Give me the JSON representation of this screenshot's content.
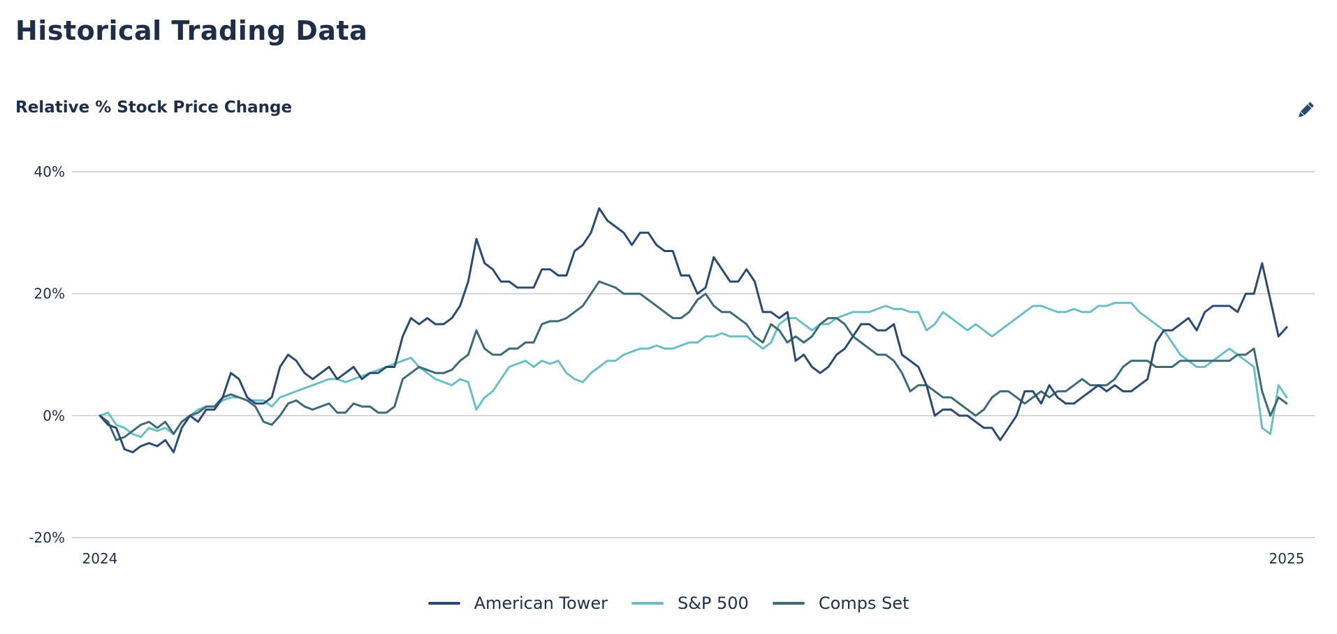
{
  "page": {
    "title": "Historical Trading Data",
    "subtitle": "Relative % Stock Price Change",
    "edit_icon": "pencil-icon"
  },
  "colors": {
    "grid": "#c9c9c9",
    "axis_text": "#1e2f49"
  },
  "chart_data": {
    "type": "line",
    "title": "Relative % Stock Price Change",
    "xlabel": "",
    "ylabel": "",
    "x_range": [
      2024,
      2025
    ],
    "ylim": [
      -20,
      40
    ],
    "yticks": [
      40,
      20,
      0,
      -20
    ],
    "ytick_labels": [
      "40%",
      "20%",
      "0%",
      "-20%"
    ],
    "xtick_labels": [
      "2024",
      "2025"
    ],
    "grid": true,
    "legend_position": "bottom-center",
    "series": [
      {
        "name": "American Tower",
        "color": "#2b4a73",
        "values": [
          0,
          -1.5,
          -2,
          -5.5,
          -6,
          -5,
          -4.5,
          -5,
          -4,
          -6,
          -2,
          0,
          -1,
          1,
          1,
          3,
          7,
          6,
          3,
          2,
          2,
          3,
          8,
          10,
          9,
          7,
          6,
          7,
          8,
          6,
          7,
          8,
          6,
          7,
          7,
          8,
          8,
          13,
          16,
          15,
          16,
          15,
          15,
          16,
          18,
          22,
          29,
          25,
          24,
          22,
          22,
          21,
          21,
          21,
          24,
          24,
          23,
          23,
          27,
          28,
          30,
          34,
          32,
          31,
          30,
          28,
          30,
          30,
          28,
          27,
          27,
          23,
          23,
          20,
          21,
          26,
          24,
          22,
          22,
          24,
          22,
          17,
          17,
          16,
          17,
          9,
          10,
          8,
          7,
          8,
          10,
          11,
          13,
          15,
          15,
          14,
          14,
          15,
          10,
          9,
          8,
          5,
          0,
          1,
          1,
          0,
          0,
          -1,
          -2,
          -2,
          -4,
          -2,
          0,
          4,
          4,
          2,
          5,
          3,
          2,
          2,
          3,
          4,
          5,
          4,
          5,
          4,
          4,
          5,
          6,
          12,
          14,
          14,
          15,
          16,
          14,
          17,
          18,
          18,
          18,
          17,
          20,
          20,
          25,
          19,
          13,
          14.5
        ]
      },
      {
        "name": "S&P 500",
        "color": "#6bbfc4",
        "values": [
          0,
          0.5,
          -1.5,
          -2,
          -3,
          -3.5,
          -2,
          -2.5,
          -2,
          -3,
          -1,
          0,
          1,
          1.5,
          1.5,
          2.5,
          3,
          3,
          2.5,
          2.5,
          2.5,
          1.5,
          3,
          3.5,
          4,
          4.5,
          5,
          5.5,
          6,
          6,
          5.5,
          6,
          6.5,
          7,
          7.5,
          8,
          8.5,
          9,
          9.5,
          8,
          7,
          6,
          5.5,
          5,
          6,
          5.5,
          1,
          3,
          4,
          6,
          8,
          8.5,
          9,
          8,
          9,
          8.5,
          9,
          7,
          6,
          5.5,
          7,
          8,
          9,
          9,
          10,
          10.5,
          11,
          11,
          11.5,
          11,
          11,
          11.5,
          12,
          12,
          13,
          13,
          13.5,
          13,
          13,
          13,
          12,
          11,
          12,
          15,
          16,
          16,
          15,
          14,
          15,
          15,
          16,
          16.5,
          17,
          17,
          17,
          17.5,
          18,
          17.5,
          17.5,
          17,
          17,
          14,
          15,
          17,
          16,
          15,
          14,
          15,
          14,
          13,
          14,
          15,
          16,
          17,
          18,
          18,
          17.5,
          17,
          17,
          17.5,
          17,
          17,
          18,
          18,
          18.5,
          18.5,
          18.5,
          17,
          16,
          15,
          14,
          12,
          10,
          9,
          8,
          8,
          9,
          10,
          11,
          10,
          9,
          8,
          -2,
          -3,
          5,
          3
        ]
      },
      {
        "name": "Comps Set",
        "color": "#3d6b73",
        "values": [
          0,
          -1,
          -4,
          -3.5,
          -2.5,
          -1.5,
          -1,
          -2,
          -1,
          -3,
          -1,
          0,
          0.5,
          1.5,
          1.5,
          3,
          3.5,
          3,
          2.5,
          1.5,
          -1,
          -1.5,
          0,
          2,
          2.5,
          1.5,
          1,
          1.5,
          2,
          0.5,
          0.5,
          2,
          1.5,
          1.5,
          0.5,
          0.5,
          1.5,
          6,
          7,
          8,
          7.5,
          7,
          7,
          7.5,
          9,
          10,
          14,
          11,
          10,
          10,
          11,
          11,
          12,
          12,
          15,
          15.5,
          15.5,
          16,
          17,
          18,
          20,
          22,
          21.5,
          21,
          20,
          20,
          20,
          19,
          18,
          17,
          16,
          16,
          17,
          19,
          20,
          18,
          17,
          17,
          16,
          15,
          13,
          12,
          15,
          14,
          12,
          13,
          12,
          13,
          15,
          16,
          16,
          15,
          13,
          12,
          11,
          10,
          10,
          9,
          7,
          4,
          5,
          5,
          4,
          3,
          3,
          2,
          1,
          0,
          1,
          3,
          4,
          4,
          3,
          2,
          3,
          4,
          3,
          4,
          4,
          5,
          6,
          5,
          5,
          5,
          6,
          8,
          9,
          9,
          9,
          8,
          8,
          8,
          9,
          9,
          9,
          9,
          9,
          9,
          9,
          10,
          10,
          11,
          4,
          0,
          3,
          2
        ]
      }
    ]
  }
}
